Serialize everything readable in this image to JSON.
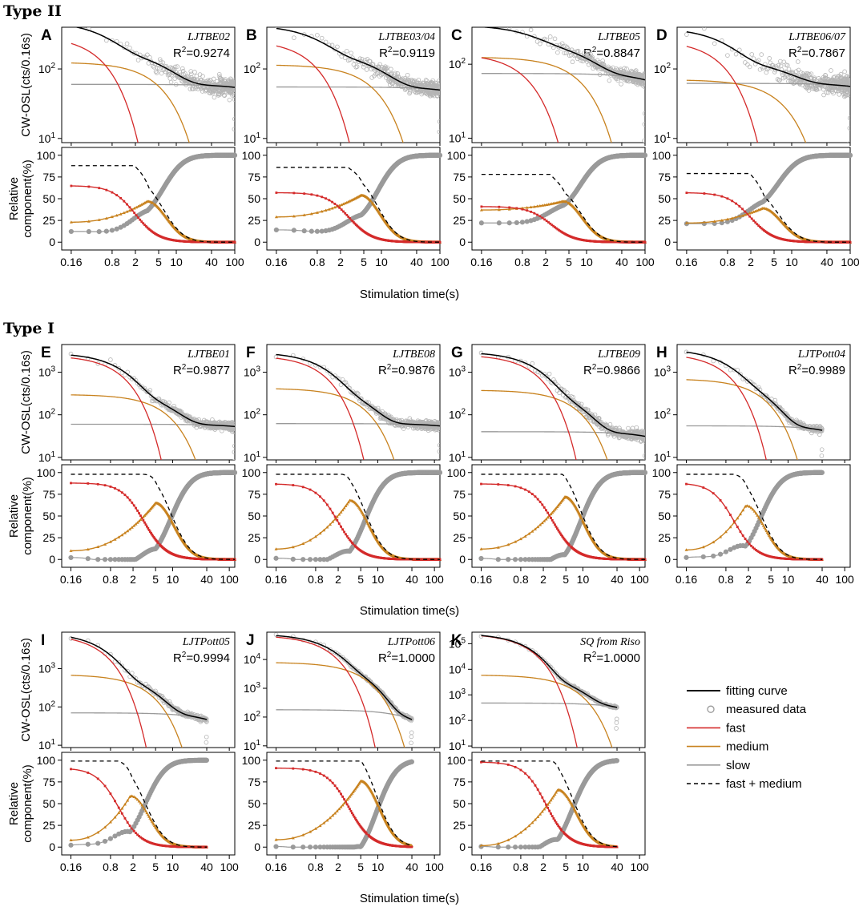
{
  "chart_data": {
    "type": "line",
    "sections": [
      "Type II",
      "Type I"
    ],
    "x_axis": {
      "label": "Stimulation time(s)",
      "scale": "log",
      "ticks": [
        0.16,
        0.8,
        2,
        5,
        10,
        40,
        100
      ],
      "tick_labels": [
        "0.16",
        "0.8",
        "2",
        "5",
        "10",
        "40",
        "100"
      ]
    },
    "top_ylabel": "CW-OSL(cts/0.16s)",
    "bottom_ylabel_lines": [
      "Relative",
      "component(%)"
    ],
    "bottom_ylim": [
      0,
      100
    ],
    "bottom_ticks": [
      "0",
      "25",
      "50",
      "75",
      "100"
    ],
    "r2_prefix": "R",
    "r2_exponent": "2",
    "series_colors": {
      "fitting": "#000000",
      "measured": "#b5b5b5",
      "fast": "#d42a2a",
      "medium": "#c8821e",
      "slow": "#9a9a9a",
      "fast_medium": "#000000"
    },
    "legend": [
      {
        "label": "fitting curve",
        "kind": "line",
        "color": "#000000"
      },
      {
        "label": "measured data",
        "kind": "circle",
        "color": "#9a9a9a"
      },
      {
        "label": "fast",
        "kind": "line",
        "color": "#d42a2a"
      },
      {
        "label": "medium",
        "kind": "line",
        "color": "#c8821e"
      },
      {
        "label": "slow",
        "kind": "line",
        "color": "#9a9a9a"
      },
      {
        "label": "fast + medium",
        "kind": "dash",
        "color": "#000000"
      }
    ],
    "panels": [
      {
        "letter": "A",
        "sample": "LJTBE02",
        "r2": "0.9274",
        "xmax": 100,
        "tmax": 100,
        "ylog_min": 1,
        "ylog_max": 2.6,
        "ylog_ticks": [
          1,
          2
        ],
        "show_ylabel": true,
        "fast0": 300,
        "kf": 1.6,
        "med0": 125,
        "km": 0.16,
        "slow": 60,
        "ks": 0.001,
        "noise": 0.14,
        "frac": {
          "fast0": 65,
          "slow0": 12,
          "med0": 23,
          "med_peak": 47,
          "peak_t": 3.2,
          "fm0": 88
        }
      },
      {
        "letter": "B",
        "sample": "LJTBE03/04",
        "r2": "0.9119",
        "xmax": 100,
        "tmax": 100,
        "ylog_min": 1,
        "ylog_max": 2.6,
        "ylog_ticks": [
          1,
          2
        ],
        "show_ylabel": false,
        "fast0": 260,
        "kf": 1.2,
        "med0": 115,
        "km": 0.11,
        "slow": 55,
        "ks": 0.001,
        "noise": 0.12,
        "frac": {
          "fast0": 57,
          "slow0": 14,
          "med0": 29,
          "med_peak": 54,
          "peak_t": 4.5,
          "fm0": 86
        }
      },
      {
        "letter": "C",
        "sample": "LJTBE05",
        "r2": "0.8847",
        "xmax": 100,
        "tmax": 100,
        "ylog_min": 1,
        "ylog_max": 2.5,
        "ylog_ticks": [
          1,
          2
        ],
        "show_ylabel": false,
        "fast0": 140,
        "kf": 0.85,
        "med0": 125,
        "km": 0.1,
        "slow": 75,
        "ks": 0.002,
        "noise": 0.09,
        "frac": {
          "fast0": 41,
          "slow0": 22,
          "med0": 37,
          "med_peak": 47,
          "peak_t": 4.0,
          "fm0": 78
        }
      },
      {
        "letter": "D",
        "sample": "LJTBE06/07",
        "r2": "0.7867",
        "xmax": 100,
        "tmax": 100,
        "ylog_min": 1,
        "ylog_max": 2.6,
        "ylog_ticks": [
          1,
          2
        ],
        "show_ylabel": false,
        "fast0": 260,
        "kf": 1.3,
        "med0": 70,
        "km": 0.12,
        "slow": 62,
        "ks": 0.001,
        "noise": 0.16,
        "frac": {
          "fast0": 57,
          "slow0": 20,
          "med0": 22,
          "med_peak": 39,
          "peak_t": 3.2,
          "fm0": 79
        }
      },
      {
        "letter": "E",
        "sample": "LJTBE01",
        "r2": "0.9877",
        "xmax": 125,
        "tmax": 125,
        "ylog_min": 1,
        "ylog_max": 3.65,
        "ylog_ticks": [
          1,
          2,
          3
        ],
        "show_ylabel": true,
        "fast0": 2500,
        "kf": 0.9,
        "med0": 300,
        "km": 0.14,
        "slow": 60,
        "ks": 0.001,
        "noise": 0.1,
        "frac": {
          "fast0": 88,
          "slow0": 2,
          "med0": 10,
          "med_peak": 65,
          "peak_t": 5.0,
          "fm0": 98
        }
      },
      {
        "letter": "F",
        "sample": "LJTBE08",
        "r2": "0.9876",
        "xmax": 125,
        "tmax": 125,
        "ylog_min": 1,
        "ylog_max": 3.65,
        "ylog_ticks": [
          1,
          2,
          3
        ],
        "show_ylabel": false,
        "fast0": 2500,
        "kf": 1.0,
        "med0": 420,
        "km": 0.2,
        "slow": 62,
        "ks": 0.001,
        "noise": 0.1,
        "frac": {
          "fast0": 87,
          "slow0": 1,
          "med0": 12,
          "med_peak": 68,
          "peak_t": 3.2,
          "fm0": 98
        }
      },
      {
        "letter": "G",
        "sample": "LJTBE09",
        "r2": "0.9866",
        "xmax": 125,
        "tmax": 125,
        "ylog_min": 1,
        "ylog_max": 3.65,
        "ylog_ticks": [
          1,
          2,
          3
        ],
        "show_ylabel": false,
        "fast0": 2600,
        "kf": 0.75,
        "med0": 380,
        "km": 0.14,
        "slow": 40,
        "ks": 0.002,
        "noise": 0.12,
        "frac": {
          "fast0": 87,
          "slow0": 1,
          "med0": 12,
          "med_peak": 72,
          "peak_t": 4.8,
          "fm0": 98
        }
      },
      {
        "letter": "H",
        "sample": "LJTPott04",
        "r2": "0.9989",
        "xmax": 125,
        "tmax": 40,
        "ylog_min": 1,
        "ylog_max": 3.65,
        "ylog_ticks": [
          1,
          2,
          3
        ],
        "show_ylabel": false,
        "fast0": 2800,
        "kf": 1.4,
        "med0": 700,
        "km": 0.3,
        "slow": 55,
        "ks": 0.006,
        "noise": 0.08,
        "frac": {
          "fast0": 88,
          "slow0": 1,
          "med0": 11,
          "med_peak": 62,
          "peak_t": 1.8,
          "fm0": 98
        }
      },
      {
        "letter": "I",
        "sample": "LJTPott05",
        "r2": "0.9994",
        "xmax": 125,
        "tmax": 40,
        "ylog_min": 1,
        "ylog_max": 3.95,
        "ylog_ticks": [
          1,
          2,
          3
        ],
        "show_ylabel": true,
        "fast0": 8000,
        "kf": 2.0,
        "med0": 700,
        "km": 0.3,
        "slow": 70,
        "ks": 0.01,
        "noise": 0.08,
        "frac": {
          "fast0": 91,
          "slow0": 1,
          "med0": 8,
          "med_peak": 59,
          "peak_t": 1.8,
          "fm0": 99
        }
      },
      {
        "letter": "J",
        "sample": "LJTPott06",
        "r2": "1.0000",
        "xmax": 125,
        "tmax": 40,
        "ylog_min": 1,
        "ylog_max": 4.95,
        "ylog_ticks": [
          1,
          2,
          3,
          4
        ],
        "show_ylabel": false,
        "fast0": 70000,
        "kf": 1.0,
        "med0": 8000,
        "km": 0.23,
        "slow": 180,
        "ks": 0.02,
        "noise": 0.05,
        "frac": {
          "fast0": 91,
          "slow0": 0.5,
          "med0": 8.5,
          "med_peak": 76,
          "peak_t": 5.0,
          "fm0": 99
        }
      },
      {
        "letter": "K",
        "sample": "SQ from Riso",
        "r2": "1.0000",
        "xmax": 125,
        "tmax": 40,
        "ylog_min": 1,
        "ylog_max": 5.45,
        "ylog_ticks": [
          1,
          2,
          3,
          4,
          5
        ],
        "show_ylabel": false,
        "fast0": 250000,
        "kf": 1.3,
        "med0": 6000,
        "km": 0.2,
        "slow": 480,
        "ks": 0.01,
        "noise": 0.04,
        "frac": {
          "fast0": 98,
          "slow0": 0.3,
          "med0": 1.7,
          "med_peak": 66,
          "peak_t": 3.6,
          "fm0": 99
        }
      }
    ]
  }
}
